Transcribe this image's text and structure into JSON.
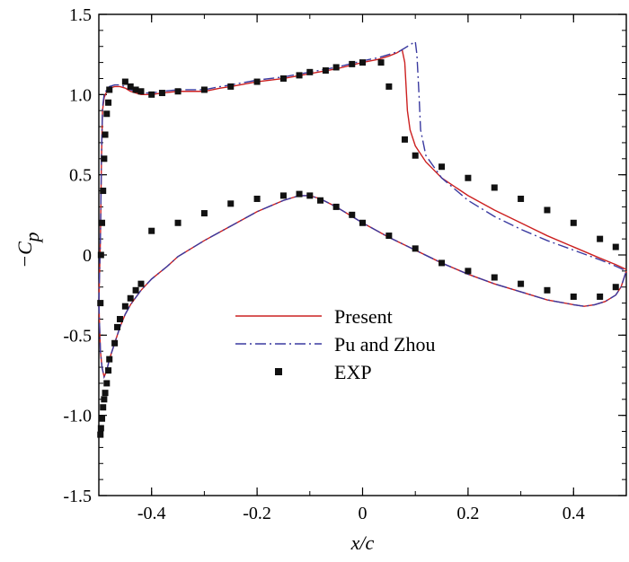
{
  "chart_data": {
    "type": "line",
    "xlabel": "x/c",
    "ylabel_main": "−C",
    "ylabel_sub": "p",
    "xlim": [
      -0.5,
      0.5
    ],
    "ylim": [
      -1.5,
      1.5
    ],
    "x_ticks": [
      -0.4,
      -0.2,
      0,
      0.2,
      0.4
    ],
    "x_tick_labels": [
      "-0.4",
      "-0.2",
      "0",
      "0.2",
      "0.4"
    ],
    "y_ticks": [
      -1.5,
      -1.0,
      -0.5,
      0,
      0.5,
      1.0,
      1.5
    ],
    "y_tick_labels": [
      "-1.5",
      "-1.0",
      "-0.5",
      "0",
      "0.5",
      "1.0",
      "1.5"
    ],
    "legend_position": "center",
    "colors": {
      "present": "#cc2020",
      "pu_zhou": "#3a3aa0",
      "exp": "#111111"
    },
    "series": [
      {
        "name": "Present",
        "style": "solid",
        "upper": {
          "x": [
            -0.5,
            -0.497,
            -0.495,
            -0.493,
            -0.49,
            -0.485,
            -0.48,
            -0.47,
            -0.46,
            -0.45,
            -0.44,
            -0.43,
            -0.42,
            -0.4,
            -0.38,
            -0.35,
            -0.32,
            -0.3,
            -0.27,
            -0.25,
            -0.2,
            -0.15,
            -0.1,
            -0.05,
            0.0,
            0.03,
            0.05,
            0.065,
            0.075,
            0.08,
            0.085,
            0.09,
            0.1,
            0.12,
            0.15,
            0.2,
            0.25,
            0.3,
            0.35,
            0.4,
            0.45,
            0.48,
            0.5
          ],
          "y": [
            -0.3,
            0.1,
            0.6,
            0.9,
            0.98,
            1.02,
            1.04,
            1.05,
            1.05,
            1.04,
            1.02,
            1.01,
            1.0,
            1.0,
            1.01,
            1.02,
            1.02,
            1.02,
            1.04,
            1.05,
            1.08,
            1.1,
            1.13,
            1.16,
            1.2,
            1.22,
            1.24,
            1.26,
            1.28,
            1.2,
            0.9,
            0.78,
            0.68,
            0.58,
            0.48,
            0.37,
            0.28,
            0.2,
            0.12,
            0.05,
            -0.02,
            -0.06,
            -0.09
          ]
        },
        "lower": {
          "x": [
            -0.5,
            -0.497,
            -0.494,
            -0.49,
            -0.485,
            -0.48,
            -0.47,
            -0.46,
            -0.45,
            -0.44,
            -0.42,
            -0.4,
            -0.37,
            -0.35,
            -0.3,
            -0.25,
            -0.2,
            -0.15,
            -0.12,
            -0.1,
            -0.08,
            -0.05,
            0.0,
            0.05,
            0.1,
            0.15,
            0.2,
            0.25,
            0.3,
            0.35,
            0.4,
            0.42,
            0.44,
            0.46,
            0.48,
            0.49,
            0.5
          ],
          "y": [
            -0.3,
            -0.6,
            -0.7,
            -0.76,
            -0.72,
            -0.65,
            -0.55,
            -0.45,
            -0.37,
            -0.31,
            -0.22,
            -0.15,
            -0.07,
            -0.01,
            0.09,
            0.18,
            0.27,
            0.34,
            0.37,
            0.37,
            0.35,
            0.3,
            0.2,
            0.11,
            0.03,
            -0.05,
            -0.12,
            -0.18,
            -0.23,
            -0.28,
            -0.31,
            -0.32,
            -0.31,
            -0.29,
            -0.25,
            -0.2,
            -0.1
          ]
        }
      },
      {
        "name": "Pu and Zhou",
        "style": "dash-dot",
        "upper": {
          "x": [
            -0.5,
            -0.497,
            -0.495,
            -0.493,
            -0.49,
            -0.485,
            -0.48,
            -0.47,
            -0.46,
            -0.45,
            -0.44,
            -0.43,
            -0.42,
            -0.4,
            -0.38,
            -0.35,
            -0.32,
            -0.3,
            -0.27,
            -0.25,
            -0.2,
            -0.15,
            -0.1,
            -0.05,
            0.0,
            0.03,
            0.05,
            0.07,
            0.085,
            0.095,
            0.1,
            0.103,
            0.107,
            0.11,
            0.12,
            0.15,
            0.2,
            0.25,
            0.3,
            0.35,
            0.4,
            0.45,
            0.48,
            0.5
          ],
          "y": [
            -0.3,
            0.1,
            0.62,
            0.92,
            1.0,
            1.03,
            1.05,
            1.06,
            1.06,
            1.05,
            1.03,
            1.02,
            1.01,
            1.01,
            1.02,
            1.03,
            1.03,
            1.03,
            1.05,
            1.06,
            1.09,
            1.11,
            1.14,
            1.17,
            1.21,
            1.23,
            1.25,
            1.27,
            1.3,
            1.32,
            1.33,
            1.25,
            1.0,
            0.78,
            0.62,
            0.48,
            0.34,
            0.24,
            0.16,
            0.09,
            0.03,
            -0.03,
            -0.07,
            -0.1
          ]
        },
        "lower": {
          "x": [
            -0.5,
            -0.497,
            -0.494,
            -0.49,
            -0.485,
            -0.48,
            -0.47,
            -0.46,
            -0.45,
            -0.44,
            -0.42,
            -0.4,
            -0.37,
            -0.35,
            -0.3,
            -0.25,
            -0.2,
            -0.15,
            -0.12,
            -0.1,
            -0.08,
            -0.05,
            0.0,
            0.05,
            0.1,
            0.15,
            0.2,
            0.25,
            0.3,
            0.35,
            0.4,
            0.42,
            0.44,
            0.46,
            0.48,
            0.49,
            0.5
          ],
          "y": [
            -0.3,
            -0.6,
            -0.7,
            -0.76,
            -0.72,
            -0.65,
            -0.55,
            -0.45,
            -0.37,
            -0.31,
            -0.22,
            -0.15,
            -0.07,
            -0.01,
            0.09,
            0.18,
            0.27,
            0.34,
            0.37,
            0.37,
            0.35,
            0.3,
            0.2,
            0.11,
            0.03,
            -0.05,
            -0.12,
            -0.18,
            -0.23,
            -0.28,
            -0.31,
            -0.32,
            -0.31,
            -0.29,
            -0.25,
            -0.2,
            -0.1
          ]
        }
      },
      {
        "name": "EXP",
        "style": "square-marker",
        "x": [
          -0.45,
          -0.44,
          -0.43,
          -0.42,
          -0.4,
          -0.38,
          -0.35,
          -0.3,
          -0.25,
          -0.2,
          -0.15,
          -0.12,
          -0.1,
          -0.07,
          -0.05,
          -0.02,
          0.0,
          0.035,
          0.05,
          0.08,
          0.1,
          0.15,
          0.2,
          0.25,
          0.3,
          0.35,
          0.4,
          0.45,
          0.48,
          -0.48,
          -0.482,
          -0.485,
          -0.488,
          -0.49,
          -0.492,
          -0.494,
          -0.496,
          -0.497,
          -0.4,
          -0.35,
          -0.3,
          -0.25,
          -0.2,
          -0.15,
          -0.12,
          -0.1,
          -0.08,
          -0.05,
          -0.02,
          0.0,
          0.05,
          0.1,
          0.15,
          0.2,
          0.25,
          0.3,
          0.35,
          0.4,
          0.45,
          0.48,
          -0.47,
          -0.465,
          -0.46,
          -0.45,
          -0.44,
          -0.43,
          -0.42,
          -0.48,
          -0.482,
          -0.485,
          -0.488,
          -0.49,
          -0.492,
          -0.494,
          -0.496,
          -0.497
        ],
        "y": [
          1.08,
          1.05,
          1.03,
          1.02,
          1.0,
          1.01,
          1.02,
          1.03,
          1.05,
          1.08,
          1.1,
          1.12,
          1.14,
          1.15,
          1.17,
          1.19,
          1.2,
          1.2,
          1.05,
          0.72,
          0.62,
          0.55,
          0.48,
          0.42,
          0.35,
          0.28,
          0.2,
          0.1,
          0.05,
          1.03,
          0.95,
          0.88,
          0.75,
          0.6,
          0.4,
          0.2,
          0.0,
          -0.3,
          0.15,
          0.2,
          0.26,
          0.32,
          0.35,
          0.37,
          0.38,
          0.37,
          0.34,
          0.3,
          0.25,
          0.2,
          0.12,
          0.04,
          -0.05,
          -0.1,
          -0.14,
          -0.18,
          -0.22,
          -0.26,
          -0.26,
          -0.2,
          -0.55,
          -0.45,
          -0.4,
          -0.32,
          -0.27,
          -0.22,
          -0.18,
          -0.65,
          -0.72,
          -0.8,
          -0.86,
          -0.9,
          -0.95,
          -1.02,
          -1.08,
          -1.12
        ]
      }
    ]
  }
}
